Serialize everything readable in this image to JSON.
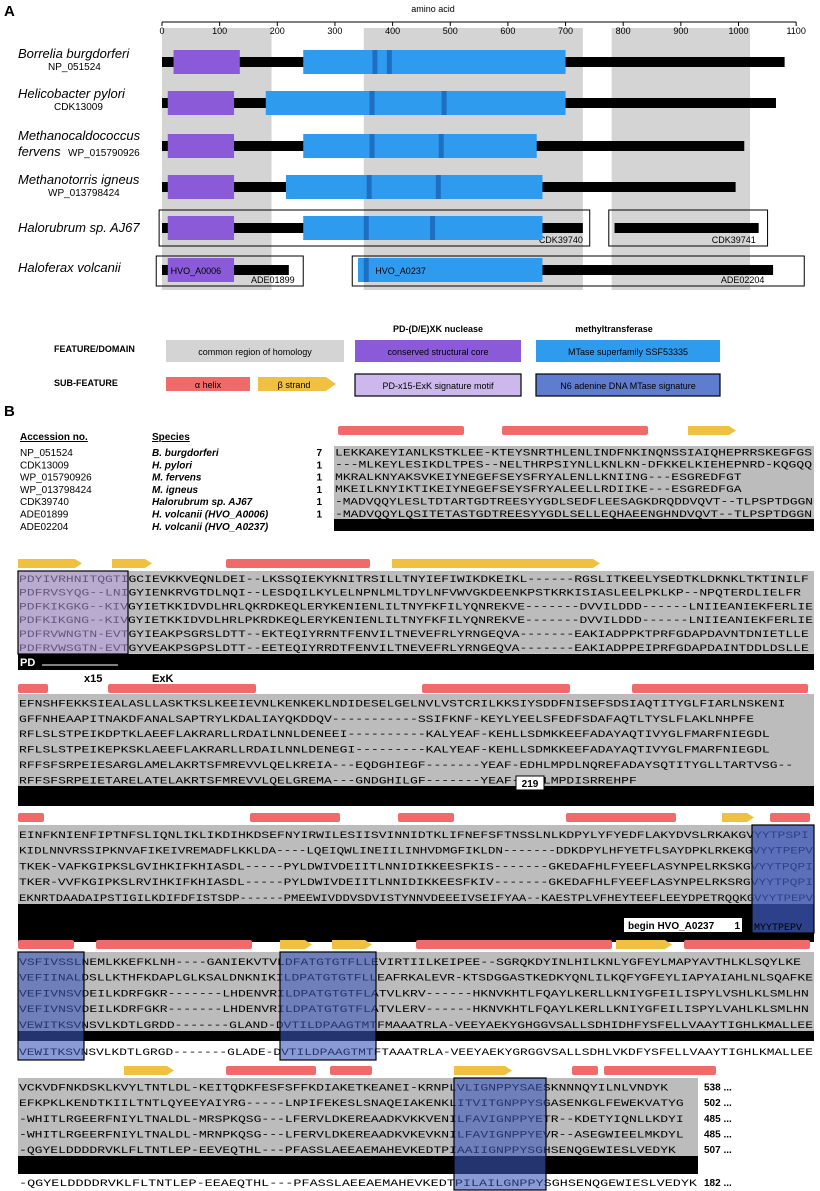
{
  "panel_a": {
    "label": "A",
    "axis_title": "amino acid",
    "axis_ticks": [
      0,
      100,
      200,
      300,
      400,
      500,
      600,
      700,
      800,
      900,
      1000,
      1100
    ],
    "homology_regions": [
      [
        0,
        190
      ],
      [
        350,
        730
      ],
      [
        780,
        1020
      ]
    ],
    "rows": [
      {
        "species": "Borrelia burgdorferi",
        "accession": "NP_051524",
        "length": 1080,
        "purple": [
          [
            20,
            135
          ]
        ],
        "blue": [
          [
            245,
            700
          ]
        ],
        "blue_marks": [
          365,
          390
        ]
      },
      {
        "species": "Helicobacter pylori",
        "accession": "CDK13009",
        "length": 1065,
        "purple": [
          [
            10,
            125
          ]
        ],
        "blue": [
          [
            180,
            700
          ]
        ],
        "blue_marks": [
          360,
          485
        ]
      },
      {
        "species": "Methanocaldococcus",
        "species2": "fervens",
        "accession": "WP_015790926",
        "length": 1010,
        "purple": [
          [
            10,
            125
          ]
        ],
        "blue": [
          [
            245,
            650
          ]
        ],
        "blue_marks": [
          360,
          480
        ]
      },
      {
        "species": "Methanotorris igneus",
        "accession": "WP_013798424",
        "length": 995,
        "purple": [
          [
            10,
            125
          ]
        ],
        "blue": [
          [
            215,
            660
          ]
        ],
        "blue_marks": [
          355,
          475
        ]
      },
      {
        "species": "Halorubrum sp. AJ67",
        "accession": "CDK39740",
        "accession2": "CDK39741",
        "length": 730,
        "purple": [
          [
            10,
            125
          ]
        ],
        "blue": [
          [
            245,
            660
          ]
        ],
        "blue_marks": [
          350,
          465
        ]
      },
      {
        "species": "Haloferax volcanii",
        "accession": "ADE01899",
        "accession2": "ADE02204",
        "domain1_label": "HVO_A0006",
        "domain2_label": "HVO_A0237",
        "purple": [
          [
            10,
            125
          ]
        ],
        "blue": [
          [
            340,
            660
          ]
        ],
        "blue_marks": [
          350
        ]
      }
    ]
  },
  "legend": {
    "col_nuclease": "PD-(D/E)XK nuclease",
    "col_mtase": "methyltransferase",
    "row1_label": "FEATURE/DOMAIN",
    "row2_label": "SUB-FEATURE",
    "common_region": "common region of homology",
    "core": "conserved structural core",
    "mtase_superfamily": "MTase superfamily SSF53335",
    "alpha": "α helix",
    "beta": "β strand",
    "motif": "PD-x15-ExK signature motif",
    "n6": "N6 adenine DNA MTase signature"
  },
  "panel_b": {
    "label": "B",
    "col_accession": "Accession no.",
    "col_species": "Species",
    "entries": [
      {
        "acc": "NP_051524",
        "species": "B. burgdorferi",
        "start": "7"
      },
      {
        "acc": "CDK13009",
        "species": "H. pylori",
        "start": "1"
      },
      {
        "acc": "WP_015790926",
        "species": "M. fervens",
        "start": "1"
      },
      {
        "acc": "WP_013798424",
        "species": "M. igneus",
        "start": "1"
      },
      {
        "acc": "CDK39740",
        "species": "Halorubrum sp. AJ67",
        "start": "1"
      },
      {
        "acc": "ADE01899",
        "species": "H. volcanii (HVO_A0006)",
        "start": "1"
      },
      {
        "acc": "ADE02204",
        "species": "H. volcanii (HVO_A0237)",
        "start": ""
      }
    ],
    "block1": [
      "LEKKAKEYIANLKSTKLEE-KTEYSNRTHLENLINDFNKINQNSSIAIQHEPRRSKEGFGS",
      "---MLKEYLESIKDLTPES--NELTHRPSIYNLLKNLKN-DFKKELKIEHEPNRD-KQGQQ",
      "MKRALKNYAKSVKEIYNEGEFSEYSFRYALENLLKNIING---ESGREDFGT",
      "MKEILKNYIKTIKEIYNEGEFSEYSFRYALEELLRDIIKE---ESGREDFGA",
      "-MADVQQYLESLTDTARTGDTREESYYGDLSEDFLEESAGKDRQDDVQVT--TLPSPTDGGN",
      "-MADVQQYLQSITETASTGDTREESYYGDLSELLEQHAEENGHNDVQVT--TLPSPTDGGN"
    ],
    "block2": [
      "PDYIVRHNITQGTIGCIEVKKVEQNLDEI--LKSSQIEKYKNITRSILLTNYIEFIWIKDKEIKL------RGSLITKEELYSEDTKLDKNKLTKTINILF",
      "PDFRVSYQG--LNIGYIENKRVGTDLNQI--LESDQILKYLELNPNLMLTDYLNFVWVGKDEENKPSTKRKISIASLEELPKLKP--NPQTERDLIELFR",
      "PDFKIKGKG--KIVGYIETKKIDVDLHRLQKRDKEQLERYKENIENLILTNYFKFILYQNREKVE-------DVVILDDD------LNIIEANIEKFERLIE",
      "PDFKIKGNG--KIVGYIETKKIDVDLHRLPKRDKEQLERYKENIENLILTNYFKFILYQNREKVE-------DVVILDDD------LNIIEANIEKFERLIE",
      "PDFRVWNGTN-EVTGYIEAKPSGRSLDTT--EKTEQIYRRNTFENVILTNEVEFRLYRNGEQVA-------EAKIADPPKTPRFGDAPDAVNTDNIETLLE",
      "PDFRVWSGTN-EVTGYVEAKPSGPSLDTT--EETEQIYRRDTFENVILTNEVEFRLYRNGEQVA-------EAKIADPPEIPRFGDAPDAINTDDLDSLLE"
    ],
    "block2_labels": {
      "pd": "PD",
      "x15": "x15",
      "exk": "ExK"
    },
    "block3": [
      "EFNSHFEKKSIEALASLLASKTKSLKEEIEVNLKENKEKLNDIDESELGELNVLVSTCRILKKSIYSDDFNISEFSDSIAQTITYGLFIARLNSKENI",
      "GFFNHEAAPITNAKDFANALSAPTRYLKDALIAYQKDDQV-----------SSIFKNF-KEYLYEELSFEDFSDAFAQTLTYSLFLAKLNHPFE",
      "RFLSLSTPEIKDPTKLAEEFLAKRARLLRDAILNNLDENEEI----------KALYEAF-KEHLLSDMKKEEFADAYAQTIVYGLFMARFNIEGDL",
      "RFLSLSTPEIKEPKSKLAEEFLAKRARLLRDAILNNLDENEGI---------KALYEAF-KEHLLSDMKKEEFADAYAQTIVYGLFMARFNIEGDL",
      "RFFSFSRPEIESARGLAMELAKRTSFMREVVLQELKREIA---EQDGHIEGF-------YEAF-EDHLMPDLNQREFADAYSQTITYGLLTARTVSG--",
      "RFFSFSRPEIETARELATELAKRTSFMREVVLQELGREMA---GNDGHILGF-------YEAF-EDYLMPDISRREHPF"
    ],
    "block3_end": "219",
    "block4": [
      "EINFKNIENFIPTNFSLIQNLIKLIKDIHKDSEFNYIRWILESIISVINNIDTKLIFNEFSFTNSSLNLKDPYLYFYEDFLAKYDVSLRKAKGVYYTPSPI",
      "KIDLNNVRSSIPKNVAFIKEIVREMADFLKKLDA----LQEIQWLINEIILINHVDMGFIKLDN-------DDKDPYLHFYETFLSAYDPKLRKEKGVYYTPEPV",
      "TKEK-VAFKGIPKSLGVIHKIFKHIASDL-----PYLDWIVDEIITLNNIDIKKEESFKIS-------GKEDAFHLFYEEFLASYNPELRKSKGVYYTPQPI",
      "TKER-VVFKGIPKSLRVIHKIFKHIASDL-----PYLDWIVDEIITLNNIDIKKEESFKIV-------GKEDAFHLFYEEFLASYNPELRKSRGVYYTPQPI",
      "EKNRTDAADAIPSTIGILKDIFDFISTSDP------PMEEWIVDDVSDVISTYNNVDEEEIVSEIFYAA--KAESTPLVFHEYTEEFLEEYDPETRQQKGVYYTPEPV"
    ],
    "block4_begin_label": "begin HVO_A0237",
    "block4_begin_num": "1",
    "block4_last": "MYYTPEPV",
    "block5": [
      "VSFIVSSLNEMLKKEFKLNH----GANIEKVTVLDFATGTGTFLLEVIRTIILKEIPEE--SGRQKDYINLHILKNLYGFEYLMAPYAVTHLKLSQYLKE",
      "VEFIINALDSLLKTHFKDAPLGLKSALDNKNIKILDPATGTGTFLLEAFRKALEVR-KTSDGGASTKEDKYQNLILKQFYGFEYLIAPYAIAHLNLSQAFKE",
      "VEFIVNSVDEILKDRFGKR-------LHDENVRILDPATGTGTFLATVLKRV------HKNVKHTLFQAYLKERLLKNIYGFEILISPYLVSHLKLSMLHN",
      "VEFIVNSVDEILKDRFGKR-------LHDENVRILDPATGTGTFLATVLERV------HKNVKHTLFQAYLKERLLKNIYGFEILISPYLVAHLKLSMLHN",
      "VEWITKSVNSVLKDTLGRDD-------GLAND-DVTILDPAAGTMTFMAAATRLA-VEEYAEKYGHGGVSALLSDHIDHFYSFELLVAAYTIGHLKMALLEE"
    ],
    "block5_last": "VEWITKSVNSVLKDTLGRGD-------GLADE-DVTILDPAAGTMTFTAAATRLA-VEEYAEKYGRGGVSALLSDHLVKDFYSFELLVAAYTIGHLKMALLEE",
    "block6": [
      "VCKVDFNKDSKLKVYLTNTLDL-KEITQDKFESFSFFKDIAKETKEANEI-KRNPLVLIGNPPYSAESKNNNQYILNLVNDYK",
      "EFKPKLKENDTKIILTNTLQYEEYAIYRG-----LNPIFEKESLSNAQEIAKENKLITVITGNPPYSGASENKGLFEWEKVATYG",
      "-WHITLRGEERFNIYLTNALDL-MRSPKQSG---LFERVLDKEREAADKVKKVENILFAVIGNPPYETR--KDETYIQNLLKDYI",
      "-WHITLRGEERFNIYLTNALDL-MRNPKQSG---LFERVLDKEREAADKVKEVKNILFAVIGNPPYEVR--ASEGWIEELMKDYL",
      "-QGYELDDDDRVKLFLTNTLEP-EEVEQTHL---PFASSLAEEAEMAHEVKEDTPIAAIIGNPPYSGHSENQGEWIESLVEDYK"
    ],
    "block6_last": "-QGYELDDDDRVKLFLTNTLEP-EEAEQTHL---PFASSLAEEAEMAHEVKEDTPILAILGNPPYSGHSENQGEWIESLVEDYK",
    "block6_ends": [
      "538 ...",
      "502 ...",
      "485 ...",
      "485 ...",
      "507 ...",
      "182 ..."
    ]
  },
  "colors": {
    "purple": "#8a5ad9",
    "blue": "#2f9bef",
    "blue_mark": "#1d6fc2",
    "homology": "#d4d4d4",
    "helix": "#f06a6a",
    "strand": "#f0c040",
    "motif_box": "#b79ae0",
    "n6_box": "#3b57b8"
  }
}
